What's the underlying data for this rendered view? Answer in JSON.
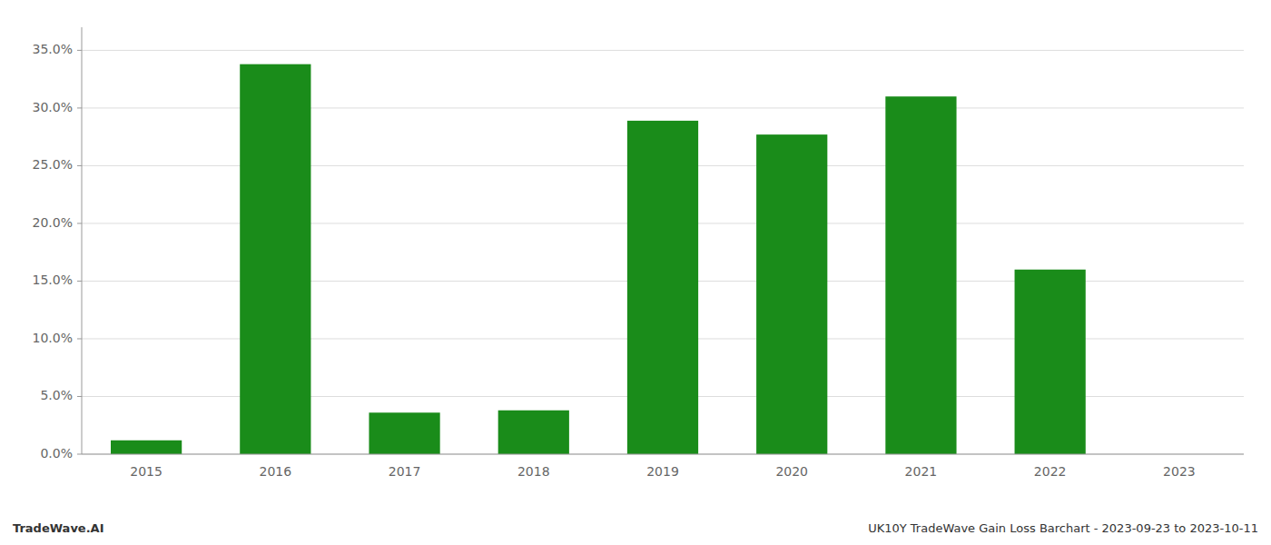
{
  "chart_data": {
    "type": "bar",
    "categories": [
      "2015",
      "2016",
      "2017",
      "2018",
      "2019",
      "2020",
      "2021",
      "2022",
      "2023"
    ],
    "values": [
      0.012,
      0.338,
      0.036,
      0.038,
      0.289,
      0.277,
      0.31,
      0.16,
      0.0
    ],
    "color": "#1a8c1a",
    "ylim": [
      0,
      0.37
    ],
    "yticks": [
      {
        "value": 0.0,
        "label": "0.0%"
      },
      {
        "value": 0.05,
        "label": "5.0%"
      },
      {
        "value": 0.1,
        "label": "10.0%"
      },
      {
        "value": 0.15,
        "label": "15.0%"
      },
      {
        "value": 0.2,
        "label": "20.0%"
      },
      {
        "value": 0.25,
        "label": "25.0%"
      },
      {
        "value": 0.3,
        "label": "30.0%"
      },
      {
        "value": 0.35,
        "label": "35.0%"
      }
    ],
    "grid": true,
    "annotations": [
      "TradeWave.AI",
      "UK10Y TradeWave Gain Loss Barchart - 2023-09-23 to 2023-10-11"
    ]
  }
}
